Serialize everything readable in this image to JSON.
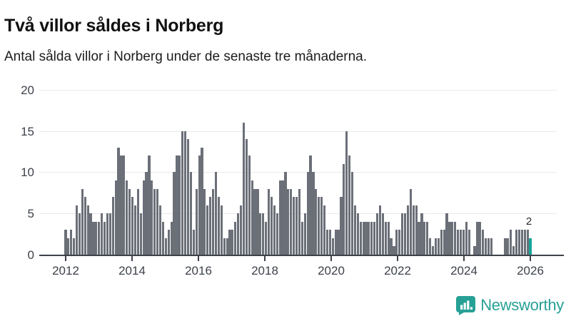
{
  "header": {
    "title": "Två villor såldes i Norberg",
    "subtitle": "Antal sålda villor i Norberg under de senaste tre månaderna."
  },
  "annotation": {
    "last_value_label": "2"
  },
  "branding": {
    "name": "Newsworthy",
    "icon": "newsworthy-speech-bubble-bar-chart-icon"
  },
  "colors": {
    "bar": "#6b6f78",
    "highlight": "#16a49a",
    "axis": "#3d424a",
    "gridline": "#e9e9e9",
    "brand": "#27a096",
    "title_text": "#111111"
  },
  "chart_data": {
    "type": "bar",
    "title": "Två villor såldes i Norberg",
    "subtitle": "Antal sålda villor i Norberg under de senaste tre månaderna.",
    "xlabel": "",
    "ylabel": "",
    "x_start": "2012-01",
    "x_interval": "month",
    "x_tick_labels": [
      "2012",
      "2014",
      "2016",
      "2018",
      "2020",
      "2022",
      "2024",
      "2026"
    ],
    "y_ticks": [
      0,
      5,
      10,
      15,
      20
    ],
    "ylim": [
      0,
      20
    ],
    "grid": "horizontal",
    "legend": "none",
    "highlight_last_bar": true,
    "last_value_label": "2",
    "values": [
      3,
      2,
      3,
      2,
      6,
      5,
      8,
      7,
      6,
      5,
      4,
      4,
      4,
      5,
      4,
      5,
      5,
      7,
      9,
      13,
      12,
      12,
      9,
      8,
      7,
      6,
      8,
      5,
      9,
      10,
      12,
      9,
      8,
      8,
      6,
      4,
      2,
      3,
      4,
      10,
      12,
      12,
      15,
      15,
      14,
      10,
      3,
      8,
      12,
      13,
      8,
      6,
      7,
      8,
      10,
      7,
      6,
      2,
      2,
      3,
      3,
      4,
      5,
      6,
      16,
      14,
      12,
      9,
      8,
      8,
      5,
      5,
      4,
      8,
      7,
      6,
      5,
      9,
      9,
      10,
      8,
      8,
      7,
      7,
      8,
      4,
      5,
      10,
      12,
      10,
      8,
      7,
      7,
      6,
      3,
      3,
      2,
      3,
      3,
      7,
      11,
      15,
      12,
      10,
      6,
      5,
      4,
      4,
      4,
      4,
      4,
      4,
      5,
      6,
      5,
      4,
      4,
      2,
      1,
      3,
      3,
      5,
      5,
      6,
      8,
      6,
      6,
      4,
      5,
      4,
      4,
      2,
      1,
      2,
      2,
      3,
      3,
      5,
      4,
      4,
      4,
      3,
      3,
      3,
      4,
      3,
      0,
      1,
      4,
      4,
      3,
      2,
      2,
      2,
      0,
      0,
      0,
      0,
      2,
      2,
      3,
      1,
      3,
      3,
      3,
      3,
      3,
      2
    ]
  }
}
